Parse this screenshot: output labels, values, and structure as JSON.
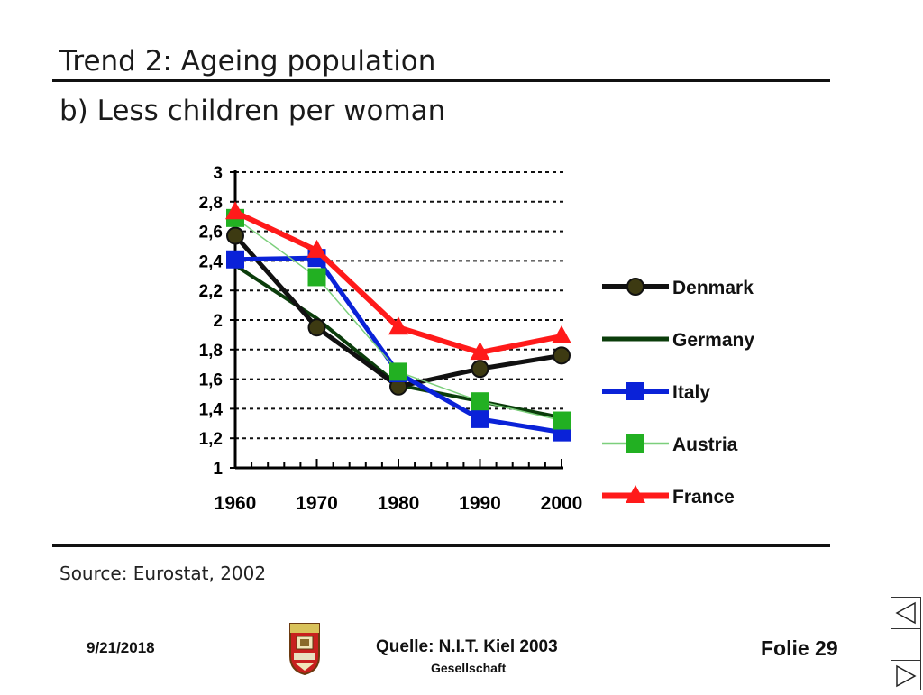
{
  "slide": {
    "title": "Trend 2: Ageing population",
    "subtitle": "b) Less children per woman",
    "source": "Source: Eurostat, 2002"
  },
  "footer": {
    "date": "9/21/2018",
    "quelle": "Quelle: N.I.T. Kiel 2003",
    "gesellschaft": "Gesellschaft",
    "folie": "Folie 29"
  },
  "nav": {
    "prev_icon": "triangle-left-icon",
    "blank": "blank-nav-cell",
    "next_icon": "triangle-right-icon"
  },
  "chart_data": {
    "type": "line",
    "x": [
      1960,
      1970,
      1980,
      1990,
      2000
    ],
    "xticklabels": [
      "1960",
      "1970",
      "1980",
      "1990",
      "2000"
    ],
    "ylim": [
      1,
      3
    ],
    "yticks": [
      1,
      1.2,
      1.4,
      1.6,
      1.8,
      2,
      2.2,
      2.4,
      2.6,
      2.8,
      3
    ],
    "yticklabels": [
      "1",
      "1,2",
      "1,4",
      "1,6",
      "1,8",
      "2",
      "2,2",
      "2,4",
      "2,6",
      "2,8",
      "3"
    ],
    "grid": "horizontal-dotted",
    "legend_position": "right",
    "series": [
      {
        "name": "Denmark",
        "values": [
          2.57,
          1.95,
          1.55,
          1.67,
          1.76
        ],
        "color": "#111111",
        "marker": "circle",
        "marker_color": "#3d3a12"
      },
      {
        "name": "Germany",
        "values": [
          2.37,
          2.01,
          1.56,
          1.45,
          1.34
        ],
        "color": "#0b3d0b",
        "marker": "none"
      },
      {
        "name": "Italy",
        "values": [
          2.41,
          2.42,
          1.64,
          1.33,
          1.24
        ],
        "color": "#0a22d8",
        "marker": "square"
      },
      {
        "name": "Austria",
        "values": [
          2.69,
          2.29,
          1.65,
          1.45,
          1.32
        ],
        "color": "#7ccf7c",
        "marker": "square",
        "marker_color": "#22b022"
      },
      {
        "name": "France",
        "values": [
          2.73,
          2.47,
          1.95,
          1.78,
          1.89
        ],
        "color": "#ff1a1a",
        "marker": "triangle"
      }
    ]
  }
}
